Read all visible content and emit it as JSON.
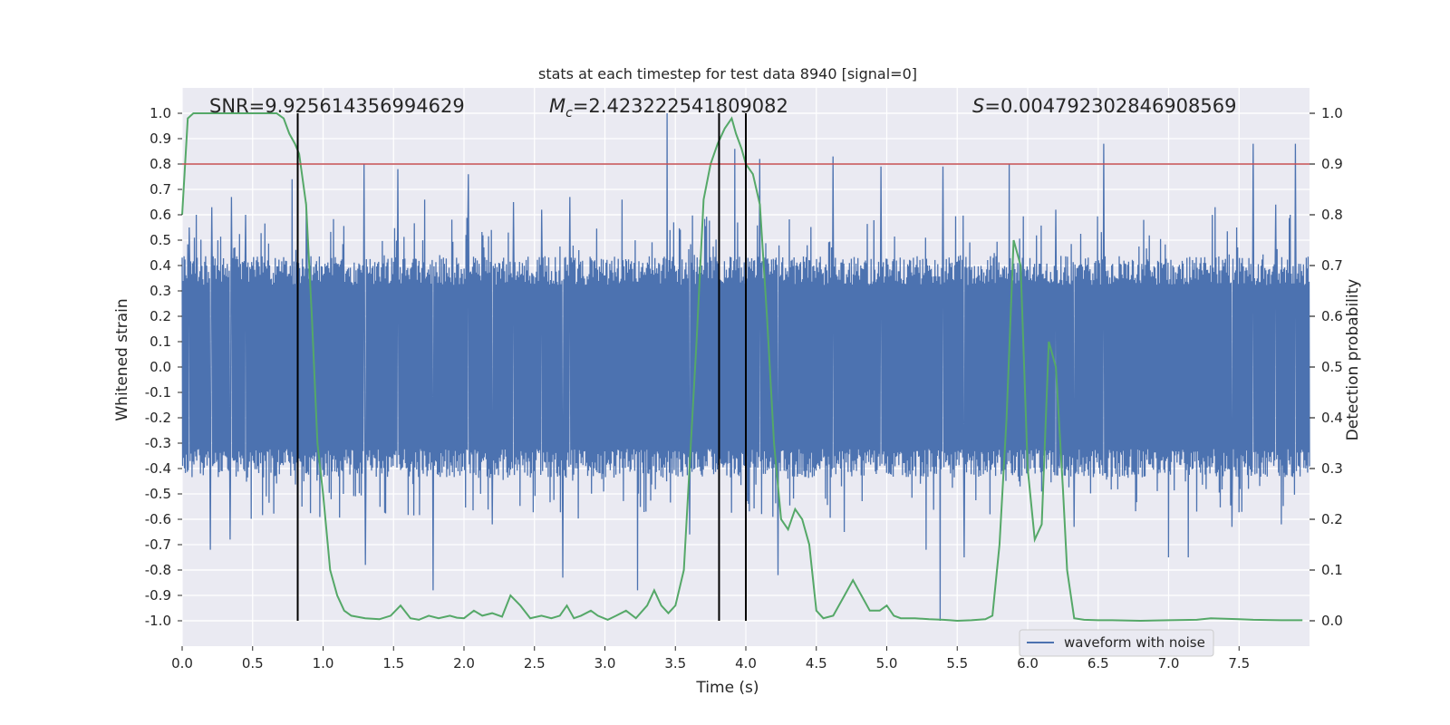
{
  "chart_data": {
    "type": "line",
    "title": "stats at each timestep for test data 8940 [signal=0]",
    "xlabel": "Time (s)",
    "ylabel": "Whitened strain",
    "y2label": "Detection probability",
    "xlim": [
      0.0,
      8.0
    ],
    "ylim": [
      -1.1,
      1.1
    ],
    "y2lim": [
      -0.05,
      1.05
    ],
    "x_ticks": [
      "0.0",
      "0.5",
      "1.0",
      "1.5",
      "2.0",
      "2.5",
      "3.0",
      "3.5",
      "4.0",
      "4.5",
      "5.0",
      "5.5",
      "6.0",
      "6.5",
      "7.0",
      "7.5"
    ],
    "y_ticks": [
      "1.0",
      "0.9",
      "0.8",
      "0.7",
      "0.6",
      "0.5",
      "0.4",
      "0.3",
      "0.2",
      "0.1",
      "0.0",
      "-0.1",
      "-0.2",
      "-0.3",
      "-0.4",
      "-0.5",
      "-0.6",
      "-0.7",
      "-0.8",
      "-0.9",
      "-1.0"
    ],
    "y2_ticks": [
      "1.0",
      "0.9",
      "0.8",
      "0.7",
      "0.6",
      "0.5",
      "0.4",
      "0.3",
      "0.2",
      "0.1",
      "0.0"
    ],
    "grid": true,
    "legend_position": "lower-right",
    "annotations": {
      "snr": "SNR=9.925614356994629",
      "mc_prefix": "M",
      "mc_sub": "c",
      "mc_value": "=2.423222541809082",
      "s_prefix": "S",
      "s_value": "=0.004792302846908569"
    },
    "threshold_line": {
      "y": 0.8,
      "color": "#c44e52"
    },
    "vertical_lines": [
      0.82,
      3.81,
      4.0
    ],
    "series": [
      {
        "name": "waveform with noise",
        "color": "#4c72b0",
        "typical_amplitude": 0.38,
        "peaks": [
          {
            "x": 0.05,
            "y": 0.55
          },
          {
            "x": 0.1,
            "y": 0.6
          },
          {
            "x": 0.21,
            "y": 0.63
          },
          {
            "x": 0.35,
            "y": 0.67
          },
          {
            "x": 0.45,
            "y": 0.6
          },
          {
            "x": 0.78,
            "y": 0.74
          },
          {
            "x": 0.88,
            "y": 0.65
          },
          {
            "x": 1.29,
            "y": 0.8
          },
          {
            "x": 1.53,
            "y": 0.78
          },
          {
            "x": 1.72,
            "y": 0.66
          },
          {
            "x": 2.03,
            "y": 0.76
          },
          {
            "x": 2.35,
            "y": 0.65
          },
          {
            "x": 2.55,
            "y": 0.62
          },
          {
            "x": 2.75,
            "y": 0.67
          },
          {
            "x": 3.12,
            "y": 0.66
          },
          {
            "x": 3.44,
            "y": 1.0
          },
          {
            "x": 3.92,
            "y": 0.86
          },
          {
            "x": 4.1,
            "y": 0.82
          },
          {
            "x": 4.62,
            "y": 0.83
          },
          {
            "x": 4.96,
            "y": 0.79
          },
          {
            "x": 5.4,
            "y": 0.79
          },
          {
            "x": 5.87,
            "y": 0.8
          },
          {
            "x": 6.2,
            "y": 0.62
          },
          {
            "x": 6.54,
            "y": 0.88
          },
          {
            "x": 7.14,
            "y": 0.79
          },
          {
            "x": 7.33,
            "y": 0.63
          },
          {
            "x": 7.6,
            "y": 0.88
          },
          {
            "x": 7.76,
            "y": 0.64
          },
          {
            "x": 7.9,
            "y": 0.88
          }
        ],
        "troughs": [
          {
            "x": 0.2,
            "y": -0.72
          },
          {
            "x": 0.34,
            "y": -0.68
          },
          {
            "x": 0.85,
            "y": -0.55
          },
          {
            "x": 1.3,
            "y": -0.78
          },
          {
            "x": 1.78,
            "y": -0.88
          },
          {
            "x": 2.2,
            "y": -0.62
          },
          {
            "x": 2.7,
            "y": -0.83
          },
          {
            "x": 3.23,
            "y": -0.88
          },
          {
            "x": 3.6,
            "y": -0.66
          },
          {
            "x": 4.23,
            "y": -0.82
          },
          {
            "x": 4.7,
            "y": -0.65
          },
          {
            "x": 5.28,
            "y": -0.72
          },
          {
            "x": 5.38,
            "y": -1.0
          },
          {
            "x": 5.55,
            "y": -0.75
          },
          {
            "x": 6.33,
            "y": -0.63
          },
          {
            "x": 7.0,
            "y": -0.75
          },
          {
            "x": 7.14,
            "y": -0.75
          },
          {
            "x": 7.45,
            "y": -0.63
          },
          {
            "x": 7.8,
            "y": -0.62
          }
        ]
      },
      {
        "name": "detection probability",
        "color": "#55a868",
        "axis": "right",
        "x": [
          0.0,
          0.04,
          0.08,
          0.12,
          0.17,
          0.25,
          0.33,
          0.42,
          0.5,
          0.58,
          0.62,
          0.67,
          0.72,
          0.76,
          0.8,
          0.83,
          0.88,
          0.92,
          0.96,
          1.0,
          1.05,
          1.1,
          1.15,
          1.2,
          1.3,
          1.4,
          1.48,
          1.55,
          1.62,
          1.68,
          1.75,
          1.82,
          1.9,
          1.95,
          2.0,
          2.07,
          2.13,
          2.2,
          2.27,
          2.33,
          2.4,
          2.47,
          2.55,
          2.62,
          2.68,
          2.73,
          2.78,
          2.83,
          2.9,
          2.95,
          3.02,
          3.08,
          3.15,
          3.22,
          3.3,
          3.35,
          3.4,
          3.45,
          3.5,
          3.56,
          3.6,
          3.65,
          3.7,
          3.75,
          3.8,
          3.85,
          3.9,
          3.93,
          3.97,
          4.0,
          4.05,
          4.1,
          4.15,
          4.2,
          4.25,
          4.3,
          4.35,
          4.4,
          4.45,
          4.5,
          4.55,
          4.62,
          4.7,
          4.76,
          4.82,
          4.88,
          4.95,
          5.0,
          5.05,
          5.1,
          5.2,
          5.3,
          5.4,
          5.45,
          5.5,
          5.6,
          5.7,
          5.75,
          5.8,
          5.85,
          5.9,
          5.95,
          6.0,
          6.05,
          6.1,
          6.15,
          6.2,
          6.25,
          6.28,
          6.33,
          6.4,
          6.5,
          6.6,
          6.8,
          7.0,
          7.2,
          7.3,
          7.4,
          7.5,
          7.6,
          7.8,
          7.95
        ],
        "y": [
          0.8,
          0.99,
          1.0,
          1.0,
          1.0,
          1.0,
          1.0,
          1.0,
          1.0,
          1.0,
          1.0,
          1.0,
          0.99,
          0.96,
          0.94,
          0.92,
          0.82,
          0.6,
          0.35,
          0.25,
          0.1,
          0.05,
          0.02,
          0.01,
          0.005,
          0.003,
          0.01,
          0.03,
          0.005,
          0.002,
          0.01,
          0.005,
          0.01,
          0.006,
          0.005,
          0.02,
          0.01,
          0.015,
          0.008,
          0.05,
          0.03,
          0.005,
          0.01,
          0.005,
          0.01,
          0.03,
          0.005,
          0.01,
          0.02,
          0.01,
          0.002,
          0.01,
          0.02,
          0.005,
          0.03,
          0.06,
          0.03,
          0.015,
          0.03,
          0.1,
          0.3,
          0.55,
          0.83,
          0.9,
          0.94,
          0.97,
          0.99,
          0.96,
          0.93,
          0.9,
          0.88,
          0.82,
          0.6,
          0.35,
          0.2,
          0.18,
          0.22,
          0.2,
          0.15,
          0.02,
          0.005,
          0.01,
          0.05,
          0.08,
          0.05,
          0.02,
          0.02,
          0.03,
          0.01,
          0.005,
          0.005,
          0.003,
          0.002,
          0.001,
          0.0,
          0.001,
          0.003,
          0.01,
          0.15,
          0.4,
          0.75,
          0.7,
          0.3,
          0.16,
          0.19,
          0.55,
          0.5,
          0.26,
          0.1,
          0.005,
          0.002,
          0.001,
          0.001,
          0.0,
          0.001,
          0.002,
          0.005,
          0.004,
          0.003,
          0.002,
          0.001,
          0.001
        ]
      }
    ]
  },
  "legend": {
    "label": "waveform with noise"
  }
}
